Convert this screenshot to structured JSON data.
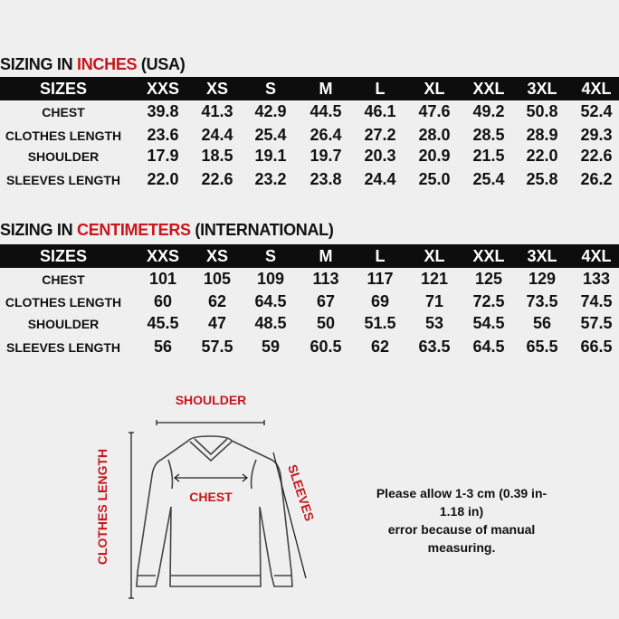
{
  "inches": {
    "title_prefix": "SIZING IN ",
    "title_highlight": "INCHES",
    "title_suffix": " (USA)",
    "header": [
      "SIZES",
      "XXS",
      "XS",
      "S",
      "M",
      "L",
      "XL",
      "XXL",
      "3XL",
      "4XL"
    ],
    "rows": [
      [
        "CHEST",
        "39.8",
        "41.3",
        "42.9",
        "44.5",
        "46.1",
        "47.6",
        "49.2",
        "50.8",
        "52.4"
      ],
      [
        "CLOTHES LENGTH",
        "23.6",
        "24.4",
        "25.4",
        "26.4",
        "27.2",
        "28.0",
        "28.5",
        "28.9",
        "29.3"
      ],
      [
        "SHOULDER",
        "17.9",
        "18.5",
        "19.1",
        "19.7",
        "20.3",
        "20.9",
        "21.5",
        "22.0",
        "22.6"
      ],
      [
        "SLEEVES LENGTH",
        "22.0",
        "22.6",
        "23.2",
        "23.8",
        "24.4",
        "25.0",
        "25.4",
        "25.8",
        "26.2"
      ]
    ]
  },
  "cm": {
    "title_prefix": "SIZING IN ",
    "title_highlight": "CENTIMETERS",
    "title_suffix": " (INTERNATIONAL)",
    "header": [
      "SIZES",
      "XXS",
      "XS",
      "S",
      "M",
      "L",
      "XL",
      "XXL",
      "3XL",
      "4XL"
    ],
    "rows": [
      [
        "CHEST",
        "101",
        "105",
        "109",
        "113",
        "117",
        "121",
        "125",
        "129",
        "133"
      ],
      [
        "CLOTHES LENGTH",
        "60",
        "62",
        "64.5",
        "67",
        "69",
        "71",
        "72.5",
        "73.5",
        "74.5"
      ],
      [
        "SHOULDER",
        "45.5",
        "47",
        "48.5",
        "50",
        "51.5",
        "53",
        "54.5",
        "56",
        "57.5"
      ],
      [
        "SLEEVES LENGTH",
        "56",
        "57.5",
        "59",
        "60.5",
        "62",
        "63.5",
        "64.5",
        "65.5",
        "66.5"
      ]
    ]
  },
  "diagram": {
    "shoulder": "SHOULDER",
    "chest": "CHEST",
    "clothes_length": "CLOTHES LENGTH",
    "sleeves": "SLEEVES"
  },
  "note": [
    "Please allow 1-3 cm (0.39 in-",
    "1.18 in)",
    "error because of manual",
    "measuring."
  ],
  "colors": {
    "accent": "#c8161d",
    "header_bg": "#0d0d0d",
    "background": "#efefef"
  }
}
